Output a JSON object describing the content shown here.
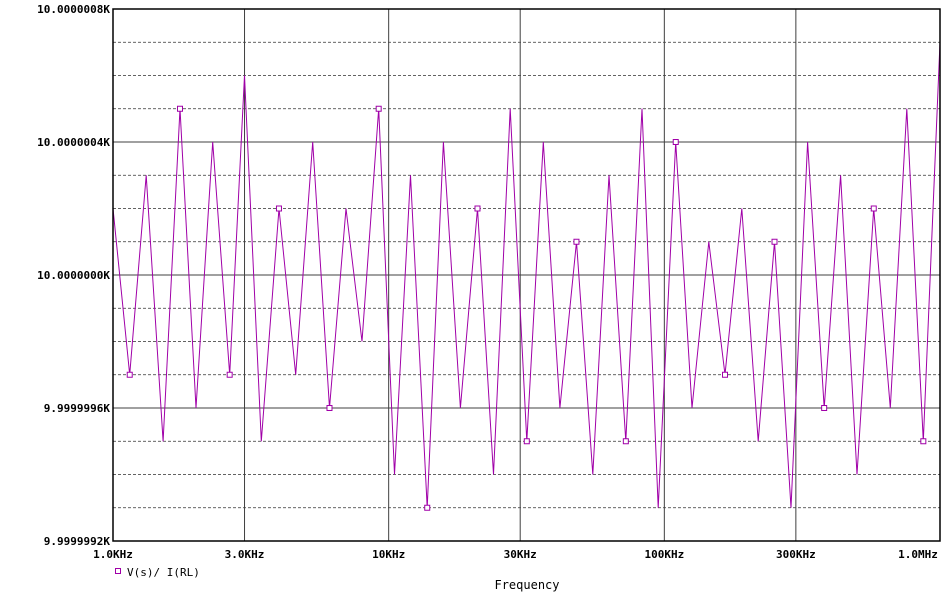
{
  "chart_data": {
    "type": "line",
    "xscale": "log",
    "xlim": [
      1000,
      1000000
    ],
    "ylim": [
      9.9999992,
      10.0000008
    ],
    "x_ticks": [
      {
        "value": 1000,
        "label": "1.0KHz"
      },
      {
        "value": 3000,
        "label": "3.0KHz"
      },
      {
        "value": 10000,
        "label": "10KHz"
      },
      {
        "value": 30000,
        "label": "30KHz"
      },
      {
        "value": 100000,
        "label": "100KHz"
      },
      {
        "value": 300000,
        "label": "300KHz"
      },
      {
        "value": 1000000,
        "label": "1.0MHz"
      }
    ],
    "y_ticks": [
      {
        "value": 9.9999992,
        "label": "9.9999992K"
      },
      {
        "value": 9.9999996,
        "label": "9.9999996K"
      },
      {
        "value": 10.0,
        "label": "10.0000000K"
      },
      {
        "value": 10.0000004,
        "label": "10.0000004K"
      },
      {
        "value": 10.0000008,
        "label": "10.0000008K"
      }
    ],
    "xlabel": "Frequency",
    "grid": true,
    "minor_grid_y": true,
    "legend_position": "bottom-left",
    "series": [
      {
        "name": "V(s)/ I(RL)",
        "color": "#a000a8",
        "marker": "square",
        "x": [
          1000,
          1150,
          1320,
          1520,
          1750,
          2000,
          2300,
          2650,
          3000,
          3450,
          4000,
          4600,
          5300,
          6100,
          7000,
          8000,
          9200,
          10500,
          12000,
          13800,
          15800,
          18200,
          21000,
          24000,
          27600,
          31700,
          36400,
          41800,
          48000,
          55000,
          63000,
          72500,
          83000,
          95000,
          110000,
          126000,
          145000,
          166000,
          191000,
          219000,
          251000,
          288000,
          331000,
          380000,
          436000,
          500000,
          575000,
          660000,
          758000,
          870000,
          1000000
        ],
        "values": [
          10.0000002,
          9.9999997,
          10.0000003,
          9.9999995,
          10.0000005,
          9.9999996,
          10.0000004,
          9.9999997,
          10.0000006,
          9.9999995,
          10.0000002,
          9.9999997,
          10.0000004,
          9.9999996,
          10.0000002,
          9.9999998,
          10.0000005,
          9.9999994,
          10.0000003,
          9.9999993,
          10.0000004,
          9.9999996,
          10.0000002,
          9.9999994,
          10.0000005,
          9.9999995,
          10.0000004,
          9.9999996,
          10.0000001,
          9.9999994,
          10.0000003,
          9.9999995,
          10.0000005,
          9.9999993,
          10.0000004,
          9.9999996,
          10.0000001,
          9.9999997,
          10.0000002,
          9.9999995,
          10.0000001,
          9.9999993,
          10.0000004,
          9.9999996,
          10.0000003,
          9.9999994,
          10.0000002,
          9.9999996,
          10.0000005,
          9.9999995,
          10.0000007
        ]
      }
    ]
  }
}
